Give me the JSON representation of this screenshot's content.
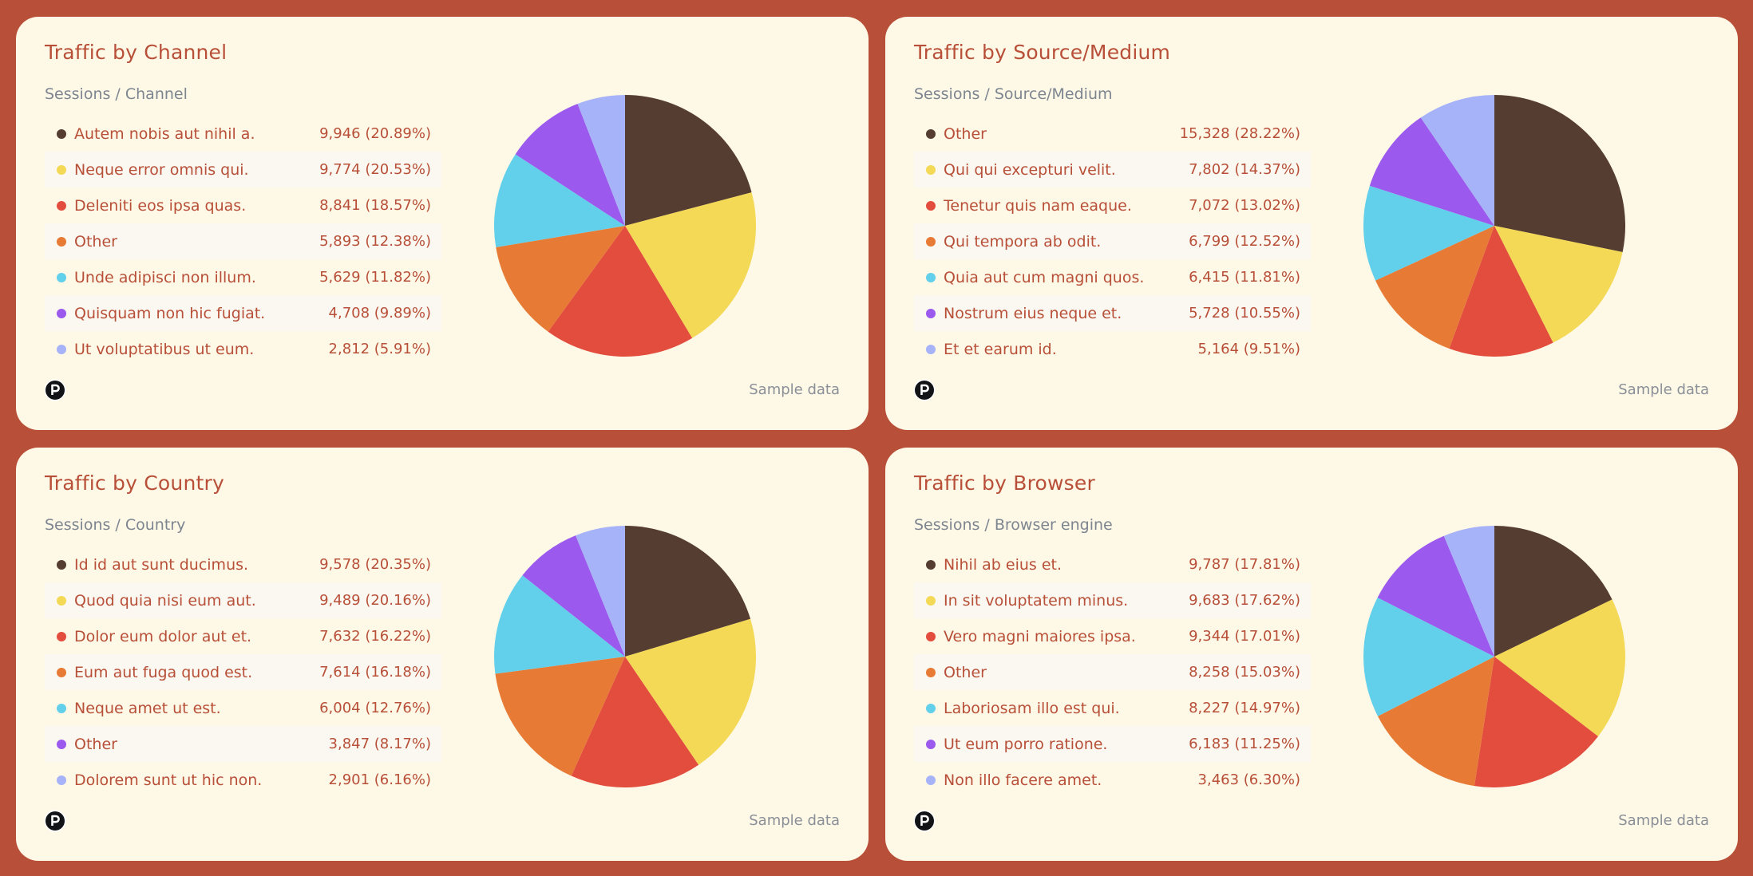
{
  "colors": {
    "background": "#b84f38",
    "card": "#fef8e6",
    "accent_text": "#b84f38",
    "muted_text": "#7d8590",
    "series": [
      "#553d31",
      "#f3d955",
      "#e24d3e",
      "#e77b36",
      "#63d0eb",
      "#9b59ee",
      "#a7b3f8"
    ]
  },
  "footer": {
    "sample_label": "Sample data",
    "logo_icon": "p-logo-icon"
  },
  "cards": [
    {
      "title": "Traffic by Channel",
      "subtitle": "Sessions / Channel",
      "rows": [
        {
          "label": "Autem nobis aut nihil a.",
          "value": "9,946 (20.89%)"
        },
        {
          "label": "Neque error omnis qui.",
          "value": "9,774 (20.53%)"
        },
        {
          "label": "Deleniti eos ipsa quas.",
          "value": "8,841 (18.57%)"
        },
        {
          "label": "Other",
          "value": "5,893 (12.38%)"
        },
        {
          "label": "Unde adipisci non illum.",
          "value": "5,629 (11.82%)"
        },
        {
          "label": "Quisquam non hic fugiat.",
          "value": "4,708 (9.89%)"
        },
        {
          "label": "Ut voluptatibus ut eum.",
          "value": "2,812 (5.91%)"
        }
      ]
    },
    {
      "title": "Traffic by Source/Medium",
      "subtitle": "Sessions / Source/Medium",
      "rows": [
        {
          "label": "Other",
          "value": "15,328 (28.22%)"
        },
        {
          "label": "Qui qui excepturi velit.",
          "value": "7,802 (14.37%)"
        },
        {
          "label": "Tenetur quis nam eaque.",
          "value": "7,072 (13.02%)"
        },
        {
          "label": "Qui tempora ab odit.",
          "value": "6,799 (12.52%)"
        },
        {
          "label": "Quia aut cum magni quos.",
          "value": "6,415 (11.81%)"
        },
        {
          "label": "Nostrum eius neque et.",
          "value": "5,728 (10.55%)"
        },
        {
          "label": "Et et earum id.",
          "value": "5,164 (9.51%)"
        }
      ]
    },
    {
      "title": "Traffic by Country",
      "subtitle": "Sessions / Country",
      "rows": [
        {
          "label": "Id id aut sunt ducimus.",
          "value": "9,578 (20.35%)"
        },
        {
          "label": "Quod quia nisi eum aut.",
          "value": "9,489 (20.16%)"
        },
        {
          "label": "Dolor eum dolor aut et.",
          "value": "7,632 (16.22%)"
        },
        {
          "label": "Eum aut fuga quod est.",
          "value": "7,614 (16.18%)"
        },
        {
          "label": "Neque amet ut est.",
          "value": "6,004 (12.76%)"
        },
        {
          "label": "Other",
          "value": "3,847 (8.17%)"
        },
        {
          "label": "Dolorem sunt ut hic non.",
          "value": "2,901 (6.16%)"
        }
      ]
    },
    {
      "title": "Traffic by Browser",
      "subtitle": "Sessions / Browser engine",
      "rows": [
        {
          "label": "Nihil ab eius et.",
          "value": "9,787 (17.81%)"
        },
        {
          "label": "In sit voluptatem minus.",
          "value": "9,683 (17.62%)"
        },
        {
          "label": "Vero magni maiores ipsa.",
          "value": "9,344 (17.01%)"
        },
        {
          "label": "Other",
          "value": "8,258 (15.03%)"
        },
        {
          "label": "Laboriosam illo est qui.",
          "value": "8,227 (14.97%)"
        },
        {
          "label": "Ut eum porro ratione.",
          "value": "6,183 (11.25%)"
        },
        {
          "label": "Non illo facere amet.",
          "value": "3,463 (6.30%)"
        }
      ]
    }
  ],
  "chart_data": [
    {
      "type": "pie",
      "title": "Traffic by Channel",
      "subtitle": "Sessions / Channel",
      "categories": [
        "Autem nobis aut nihil a.",
        "Neque error omnis qui.",
        "Deleniti eos ipsa quas.",
        "Other",
        "Unde adipisci non illum.",
        "Quisquam non hic fugiat.",
        "Ut voluptatibus ut eum."
      ],
      "values": [
        9946,
        9774,
        8841,
        5893,
        5629,
        4708,
        2812
      ],
      "percentages": [
        20.89,
        20.53,
        18.57,
        12.38,
        11.82,
        9.89,
        5.91
      ],
      "colors": [
        "#553d31",
        "#f3d955",
        "#e24d3e",
        "#e77b36",
        "#63d0eb",
        "#9b59ee",
        "#a7b3f8"
      ],
      "legend_position": "left",
      "annotation": "Sample data"
    },
    {
      "type": "pie",
      "title": "Traffic by Source/Medium",
      "subtitle": "Sessions / Source/Medium",
      "categories": [
        "Other",
        "Qui qui excepturi velit.",
        "Tenetur quis nam eaque.",
        "Qui tempora ab odit.",
        "Quia aut cum magni quos.",
        "Nostrum eius neque et.",
        "Et et earum id."
      ],
      "values": [
        15328,
        7802,
        7072,
        6799,
        6415,
        5728,
        5164
      ],
      "percentages": [
        28.22,
        14.37,
        13.02,
        12.52,
        11.81,
        10.55,
        9.51
      ],
      "colors": [
        "#553d31",
        "#f3d955",
        "#e24d3e",
        "#e77b36",
        "#63d0eb",
        "#9b59ee",
        "#a7b3f8"
      ],
      "legend_position": "left",
      "annotation": "Sample data"
    },
    {
      "type": "pie",
      "title": "Traffic by Country",
      "subtitle": "Sessions / Country",
      "categories": [
        "Id id aut sunt ducimus.",
        "Quod quia nisi eum aut.",
        "Dolor eum dolor aut et.",
        "Eum aut fuga quod est.",
        "Neque amet ut est.",
        "Other",
        "Dolorem sunt ut hic non."
      ],
      "values": [
        9578,
        9489,
        7632,
        7614,
        6004,
        3847,
        2901
      ],
      "percentages": [
        20.35,
        20.16,
        16.22,
        16.18,
        12.76,
        8.17,
        6.16
      ],
      "colors": [
        "#553d31",
        "#f3d955",
        "#e24d3e",
        "#e77b36",
        "#63d0eb",
        "#9b59ee",
        "#a7b3f8"
      ],
      "legend_position": "left",
      "annotation": "Sample data"
    },
    {
      "type": "pie",
      "title": "Traffic by Browser",
      "subtitle": "Sessions / Browser engine",
      "categories": [
        "Nihil ab eius et.",
        "In sit voluptatem minus.",
        "Vero magni maiores ipsa.",
        "Other",
        "Laboriosam illo est qui.",
        "Ut eum porro ratione.",
        "Non illo facere amet."
      ],
      "values": [
        9787,
        9683,
        9344,
        8258,
        8227,
        6183,
        3463
      ],
      "percentages": [
        17.81,
        17.62,
        17.01,
        15.03,
        14.97,
        11.25,
        6.3
      ],
      "colors": [
        "#553d31",
        "#f3d955",
        "#e24d3e",
        "#e77b36",
        "#63d0eb",
        "#9b59ee",
        "#a7b3f8"
      ],
      "legend_position": "left",
      "annotation": "Sample data"
    }
  ]
}
